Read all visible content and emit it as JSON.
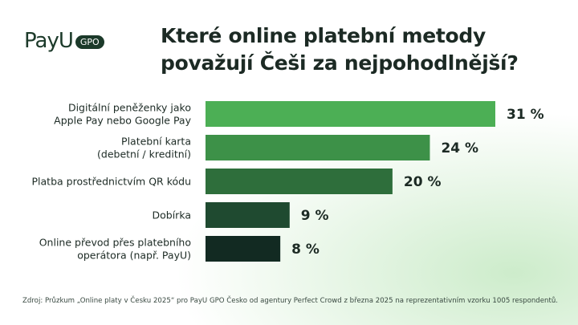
{
  "logo": {
    "brand": "PayU",
    "badge": "GPO"
  },
  "title_lines": [
    "Které online platební metody",
    "považují Češi za nejpohodlnější?"
  ],
  "chart_data": {
    "type": "bar",
    "orientation": "horizontal",
    "title": "Které online platební metody považují Češi za nejpohodlnější?",
    "categories": [
      [
        "Digitální peněženky jako",
        "Apple Pay nebo Google Pay"
      ],
      [
        "Platební karta",
        "(debetní / kreditní)"
      ],
      [
        "Platba prostřednictvím QR kódu"
      ],
      [
        "Dobírka"
      ],
      [
        "Online převod přes platebního",
        "operátora (např. PayU)"
      ]
    ],
    "values": [
      31,
      24,
      20,
      9,
      8
    ],
    "value_labels": [
      "31 %",
      "24 %",
      "20 %",
      "9 %",
      "8 %"
    ],
    "colors": [
      "#4caf55",
      "#3d9148",
      "#2e6e3b",
      "#1f4a30",
      "#122a22"
    ],
    "xlim": [
      0,
      31
    ],
    "grid": false,
    "legend": "none"
  },
  "source": "Zdroj: Průzkum „Online platy v Česku 2025“ pro PayU GPO Česko od agentury Perfect Crowd z března 2025 na reprezentativním vzorku 1005 respondentů."
}
